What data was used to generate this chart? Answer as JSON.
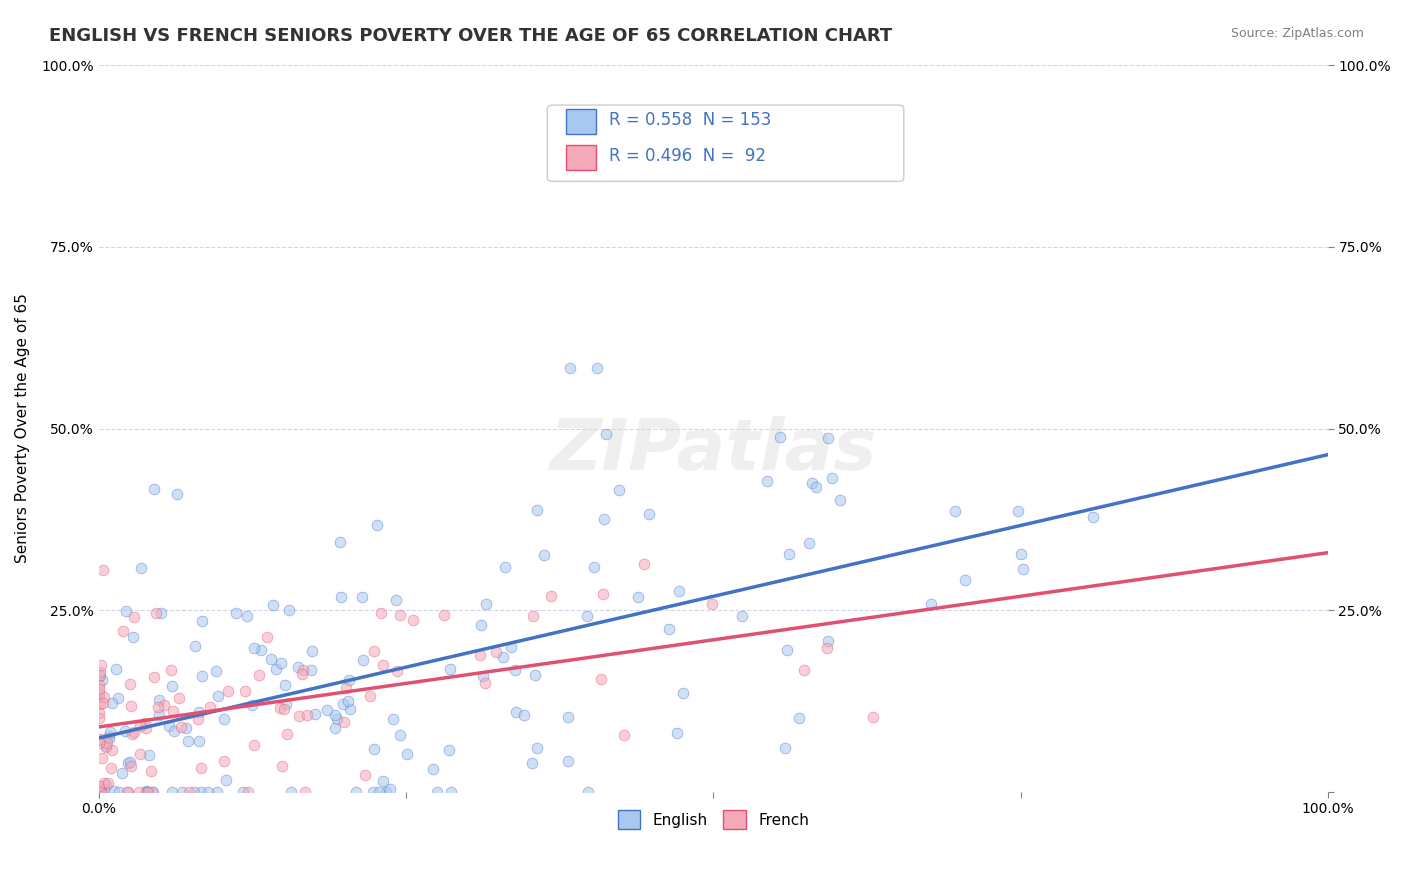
{
  "title": "ENGLISH VS FRENCH SENIORS POVERTY OVER THE AGE OF 65 CORRELATION CHART",
  "source": "Source: ZipAtlas.com",
  "ylabel": "Seniors Poverty Over the Age of 65",
  "xlabel": "",
  "xlim": [
    0,
    1
  ],
  "ylim": [
    0,
    1
  ],
  "xticks": [
    0.0,
    0.25,
    0.5,
    0.75,
    1.0
  ],
  "xticklabels": [
    "0.0%",
    "",
    "",
    "",
    "100.0%"
  ],
  "yticks": [
    0.0,
    0.25,
    0.5,
    0.75,
    1.0
  ],
  "yticklabels": [
    "",
    "25.0%",
    "50.0%",
    "75.0%",
    "100.0%"
  ],
  "english_color": "#a8c8f0",
  "english_line_color": "#4472c4",
  "french_color": "#f4a8b8",
  "french_line_color": "#e05070",
  "english_R": 0.558,
  "english_N": 153,
  "french_R": 0.496,
  "french_N": 92,
  "legend_label_english": "English",
  "legend_label_french": "French",
  "watermark": "ZIPatlas",
  "background_color": "#ffffff",
  "grid_color": "#d0d8e8",
  "title_fontsize": 13,
  "axis_label_fontsize": 11,
  "tick_fontsize": 10,
  "legend_fontsize": 11,
  "scatter_alpha": 0.55,
  "scatter_size": 60,
  "english_trend_start_x": 0.0,
  "english_trend_end_x": 1.0,
  "english_trend_start_y": 0.05,
  "english_trend_end_y": 0.5,
  "french_trend_start_x": 0.0,
  "french_trend_end_x": 1.0,
  "french_trend_start_y": 0.08,
  "french_trend_end_y": 0.37
}
